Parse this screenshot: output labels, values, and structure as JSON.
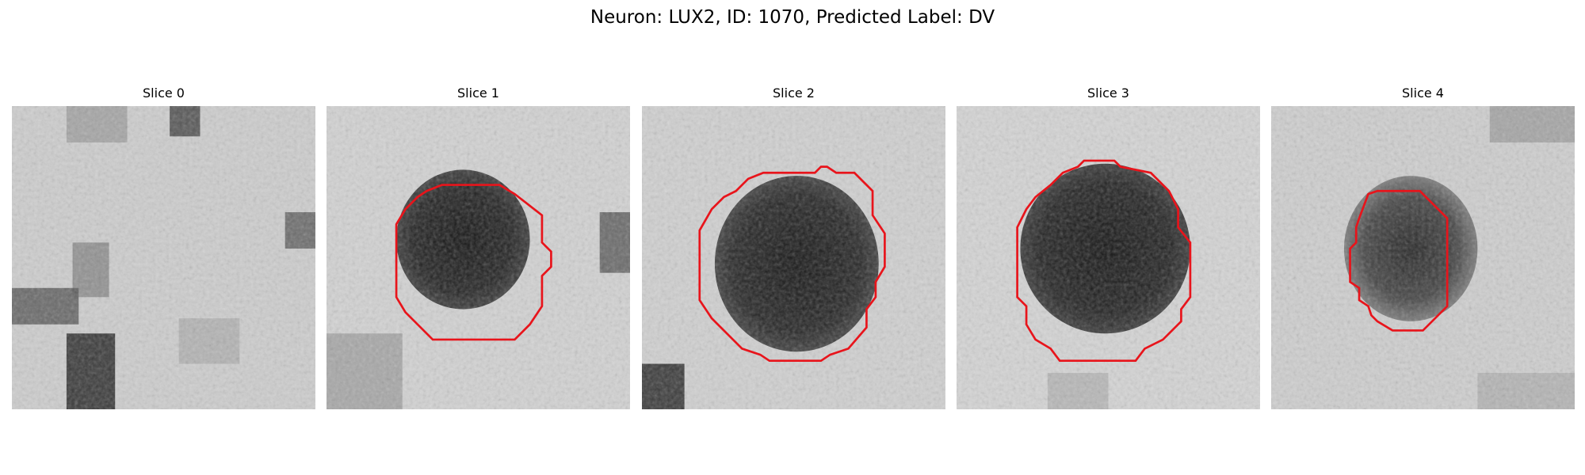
{
  "figure": {
    "title": "Neuron: LUX2, ID: 1070, Predicted Label: DV"
  },
  "panels": [
    {
      "title": "Slice 0",
      "has_contour": false
    },
    {
      "title": "Slice 1",
      "has_contour": true
    },
    {
      "title": "Slice 2",
      "has_contour": true
    },
    {
      "title": "Slice 3",
      "has_contour": true
    },
    {
      "title": "Slice 4",
      "has_contour": true
    }
  ],
  "colors": {
    "contour": "#e8141b",
    "background": "#ffffff"
  }
}
